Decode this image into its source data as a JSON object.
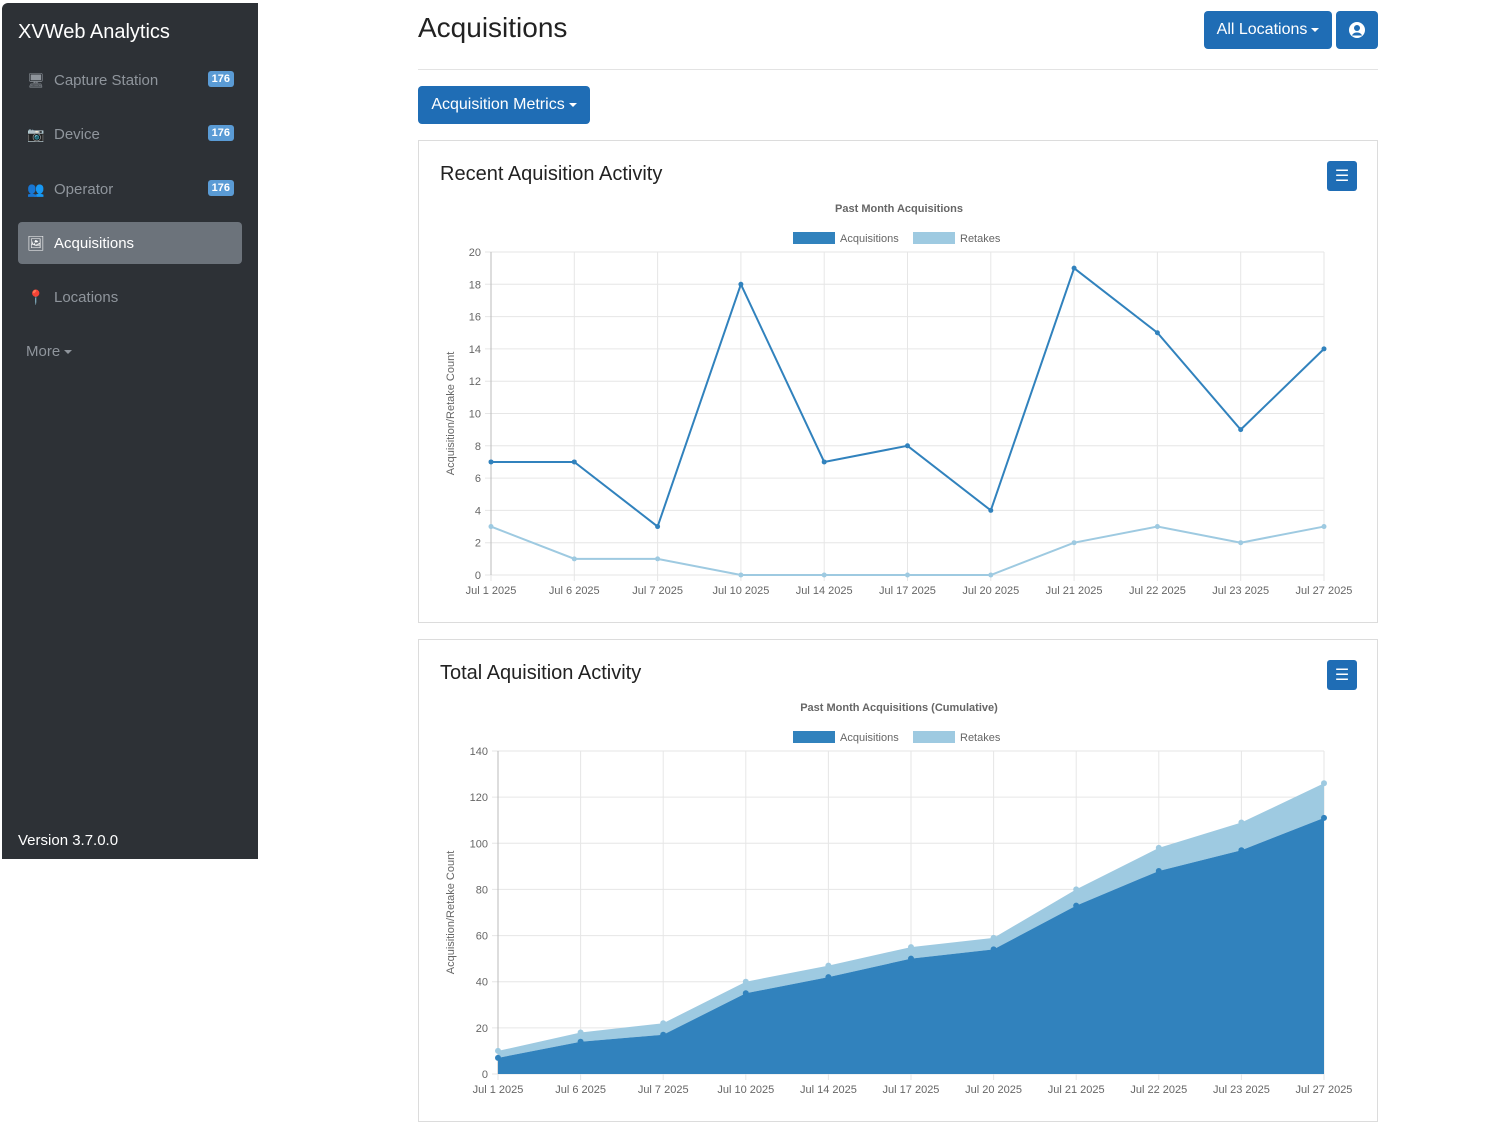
{
  "sidebar": {
    "brand": "XVWeb Analytics",
    "items": [
      {
        "label": "Capture Station",
        "icon": "monitor-icon",
        "badge": "176"
      },
      {
        "label": "Device",
        "icon": "camera-icon",
        "badge": "176"
      },
      {
        "label": "Operator",
        "icon": "users-icon",
        "badge": "176"
      },
      {
        "label": "Acquisitions",
        "icon": "images-icon",
        "active": true
      },
      {
        "label": "Locations",
        "icon": "map-marker-icon"
      }
    ],
    "more": "More",
    "version": "Version 3.7.0.0"
  },
  "header": {
    "title": "Acquisitions",
    "locations_button": "All Locations",
    "user_icon": "user-circle-icon",
    "metrics_button": "Acquisition Metrics"
  },
  "colors": {
    "primary": "#1f6db5",
    "acquisitions": "#3182bd",
    "retakes": "#9ecae1"
  },
  "cards": [
    {
      "title": "Recent Aquisition Activity"
    },
    {
      "title": "Total Aquisition Activity"
    }
  ],
  "chart_data": [
    {
      "type": "line",
      "title": "Past Month Acquisitions",
      "ylabel": "Acquisition/Retake Count",
      "xlabel": "",
      "ylim": [
        0,
        20
      ],
      "yticks": [
        0,
        2,
        4,
        6,
        8,
        10,
        12,
        14,
        16,
        18,
        20
      ],
      "grid": true,
      "legend": "top",
      "categories": [
        "Jul 1 2025",
        "Jul 6 2025",
        "Jul 7 2025",
        "Jul 10 2025",
        "Jul 14 2025",
        "Jul 17 2025",
        "Jul 20 2025",
        "Jul 21 2025",
        "Jul 22 2025",
        "Jul 23 2025",
        "Jul 27 2025"
      ],
      "series": [
        {
          "name": "Acquisitions",
          "values": [
            7,
            7,
            3,
            18,
            7,
            8,
            4,
            19,
            15,
            9,
            14
          ]
        },
        {
          "name": "Retakes",
          "values": [
            3,
            1,
            1,
            0,
            0,
            0,
            0,
            2,
            3,
            2,
            3
          ]
        }
      ]
    },
    {
      "type": "area",
      "stacked": true,
      "title": "Past Month Acquisitions (Cumulative)",
      "ylabel": "Acquisition/Retake Count",
      "xlabel": "",
      "ylim": [
        0,
        140
      ],
      "yticks": [
        0,
        20,
        40,
        60,
        80,
        100,
        120,
        140
      ],
      "grid": true,
      "legend": "top",
      "categories": [
        "Jul 1 2025",
        "Jul 6 2025",
        "Jul 7 2025",
        "Jul 10 2025",
        "Jul 14 2025",
        "Jul 17 2025",
        "Jul 20 2025",
        "Jul 21 2025",
        "Jul 22 2025",
        "Jul 23 2025",
        "Jul 27 2025"
      ],
      "series": [
        {
          "name": "Acquisitions",
          "values": [
            7,
            14,
            17,
            35,
            42,
            50,
            54,
            73,
            88,
            97,
            111
          ]
        },
        {
          "name": "Retakes",
          "values": [
            3,
            4,
            5,
            5,
            5,
            5,
            5,
            7,
            10,
            12,
            15
          ]
        }
      ]
    }
  ]
}
